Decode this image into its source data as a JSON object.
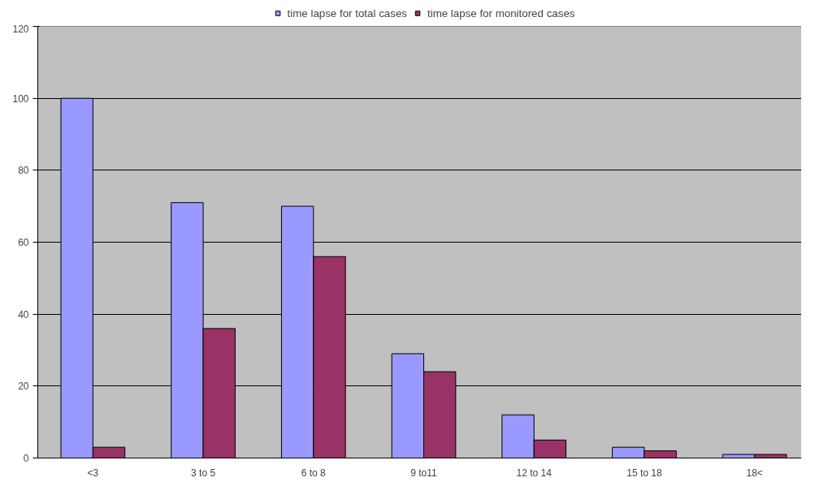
{
  "chart_data": {
    "type": "bar",
    "categories": [
      "<3",
      "3 to 5",
      "6 to 8",
      "9 to11",
      "12 to 14",
      "15 to 18",
      "18<"
    ],
    "series": [
      {
        "name": "time lapse for total cases",
        "color": "#9999ff",
        "values": [
          100,
          71,
          70,
          29,
          12,
          3,
          1
        ]
      },
      {
        "name": "time lapse for monitored cases",
        "color": "#993366",
        "values": [
          3,
          36,
          56,
          24,
          5,
          2,
          1
        ]
      }
    ],
    "ylim": [
      0,
      120
    ],
    "yticks": [
      0,
      20,
      40,
      60,
      80,
      100,
      120
    ],
    "grid": "y",
    "legend": "top"
  }
}
